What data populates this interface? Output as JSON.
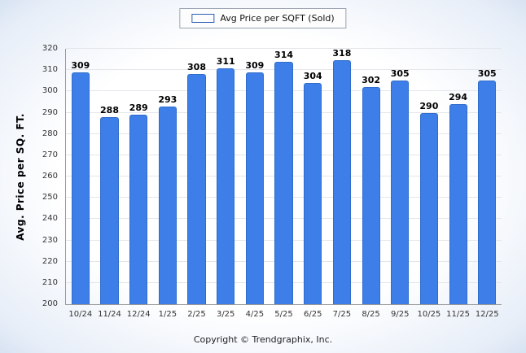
{
  "legend": {
    "label": "Avg Price per SQFT (Sold)"
  },
  "footer": "Copyright © Trendgraphix, Inc.",
  "colors": {
    "bar_fill": "#3e7ee8",
    "bar_border": "#2f6ccc"
  },
  "chart_data": {
    "type": "bar",
    "title": "",
    "xlabel": "",
    "ylabel": "Avg. Price per SQ. FT.",
    "ylim": [
      200,
      320
    ],
    "ytick_step": 10,
    "grid": true,
    "legend_position": "top",
    "legend_entries": [
      "Avg Price per SQFT (Sold)"
    ],
    "categories": [
      "10/24",
      "11/24",
      "12/24",
      "1/25",
      "2/25",
      "3/25",
      "4/25",
      "5/25",
      "6/25",
      "7/25",
      "8/25",
      "9/25",
      "10/25",
      "11/25",
      "12/25"
    ],
    "values": [
      309,
      288,
      289,
      293,
      308,
      311,
      309,
      314,
      304,
      318,
      302,
      305,
      290,
      294,
      305
    ]
  }
}
